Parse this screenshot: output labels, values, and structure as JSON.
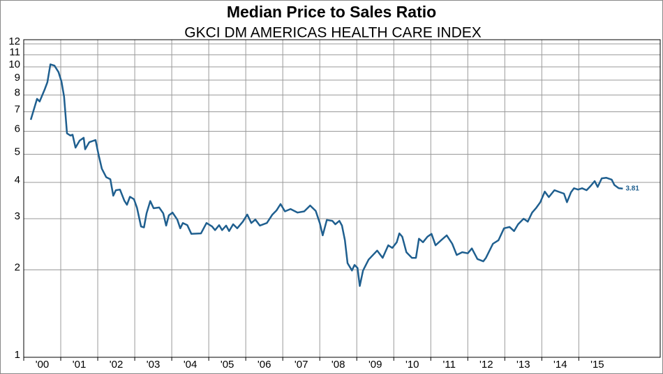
{
  "chart_data": {
    "type": "line",
    "title": "Median Price to Sales Ratio",
    "subtitle": "GKCI DM AMERICAS HEALTH CARE INDEX",
    "log_scale": true,
    "grid": true,
    "color": "#1f5f8f",
    "x": [
      2000.19,
      2000.36,
      2000.43,
      2000.57,
      2000.64,
      2000.72,
      2000.83,
      2000.94,
      2001.02,
      2001.09,
      2001.17,
      2001.26,
      2001.32,
      2001.4,
      2001.51,
      2001.62,
      2001.66,
      2001.77,
      2001.94,
      2002.02,
      2002.11,
      2002.23,
      2002.34,
      2002.42,
      2002.49,
      2002.6,
      2002.72,
      2002.79,
      2002.87,
      2002.98,
      2003.06,
      2003.17,
      2003.25,
      2003.32,
      2003.42,
      2003.51,
      2003.66,
      2003.77,
      2003.85,
      2003.92,
      2004.02,
      2004.15,
      2004.23,
      2004.3,
      2004.42,
      2004.53,
      2004.79,
      2004.94,
      2005.09,
      2005.17,
      2005.28,
      2005.36,
      2005.47,
      2005.55,
      2005.66,
      2005.77,
      2005.92,
      2006.04,
      2006.15,
      2006.26,
      2006.38,
      2006.57,
      2006.72,
      2006.83,
      2006.94,
      2007.06,
      2007.21,
      2007.4,
      2007.58,
      2007.74,
      2007.89,
      2008.0,
      2008.08,
      2008.19,
      2008.34,
      2008.42,
      2008.53,
      2008.6,
      2008.68,
      2008.75,
      2008.87,
      2008.94,
      2009.02,
      2009.08,
      2009.17,
      2009.32,
      2009.55,
      2009.7,
      2009.85,
      2009.96,
      2010.08,
      2010.15,
      2010.23,
      2010.34,
      2010.49,
      2010.6,
      2010.68,
      2010.79,
      2010.91,
      2011.02,
      2011.13,
      2011.28,
      2011.43,
      2011.58,
      2011.7,
      2011.85,
      2012.0,
      2012.11,
      2012.26,
      2012.42,
      2012.49,
      2012.68,
      2012.83,
      2012.98,
      2013.13,
      2013.25,
      2013.36,
      2013.51,
      2013.62,
      2013.74,
      2013.85,
      2013.96,
      2014.08,
      2014.19,
      2014.34,
      2014.49,
      2014.6,
      2014.68,
      2014.79,
      2014.87,
      2014.98,
      2015.09,
      2015.21,
      2015.32,
      2015.43,
      2015.51,
      2015.62,
      2015.74,
      2015.89,
      2015.96,
      2016.08,
      2016.19
    ],
    "values": [
      6.57,
      7.76,
      7.6,
      8.38,
      8.85,
      10.2,
      10.1,
      9.6,
      8.9,
      7.9,
      5.9,
      5.8,
      5.84,
      5.27,
      5.57,
      5.7,
      5.2,
      5.5,
      5.6,
      5.0,
      4.46,
      4.17,
      4.1,
      3.6,
      3.76,
      3.78,
      3.46,
      3.35,
      3.57,
      3.5,
      3.27,
      2.82,
      2.8,
      3.13,
      3.45,
      3.26,
      3.28,
      3.13,
      2.84,
      3.08,
      3.15,
      2.98,
      2.78,
      2.9,
      2.85,
      2.66,
      2.67,
      2.9,
      2.82,
      2.74,
      2.85,
      2.74,
      2.84,
      2.72,
      2.87,
      2.78,
      2.93,
      3.1,
      2.9,
      2.98,
      2.84,
      2.9,
      3.1,
      3.2,
      3.37,
      3.18,
      3.24,
      3.15,
      3.18,
      3.33,
      3.19,
      2.9,
      2.63,
      2.97,
      2.95,
      2.87,
      2.95,
      2.84,
      2.53,
      2.11,
      1.99,
      2.08,
      2.03,
      1.76,
      1.99,
      2.17,
      2.33,
      2.2,
      2.43,
      2.38,
      2.49,
      2.67,
      2.6,
      2.3,
      2.2,
      2.2,
      2.56,
      2.49,
      2.6,
      2.66,
      2.43,
      2.53,
      2.63,
      2.46,
      2.25,
      2.3,
      2.28,
      2.37,
      2.18,
      2.14,
      2.2,
      2.46,
      2.53,
      2.78,
      2.81,
      2.72,
      2.87,
      3.0,
      2.93,
      3.15,
      3.27,
      3.42,
      3.72,
      3.56,
      3.76,
      3.7,
      3.66,
      3.42,
      3.7,
      3.82,
      3.78,
      3.82,
      3.76,
      3.89,
      4.04,
      3.86,
      4.13,
      4.15,
      4.09,
      3.92,
      3.82,
      3.81
    ],
    "value_labels": [
      null,
      null,
      null,
      null,
      null,
      null,
      null,
      null,
      null,
      null,
      null,
      null,
      null,
      null,
      null,
      null,
      null,
      null,
      null,
      null,
      null,
      null,
      null,
      null,
      null,
      null,
      null,
      null,
      null,
      null,
      null,
      null,
      null,
      null,
      null,
      null,
      null,
      null,
      null,
      null,
      null,
      null,
      null,
      null,
      null,
      null,
      null,
      null,
      null,
      null,
      null,
      null,
      null,
      null,
      null,
      null,
      null,
      null,
      null,
      null,
      null,
      null,
      null,
      null,
      null,
      null,
      null,
      null,
      null,
      null,
      null,
      null,
      null,
      null,
      null,
      null,
      null,
      null,
      null,
      null,
      null,
      null,
      null,
      null,
      null,
      null,
      null,
      null,
      null,
      null,
      null,
      null,
      null,
      null,
      null,
      null,
      null,
      null,
      null,
      null,
      null,
      null,
      null,
      null,
      null,
      null,
      null,
      null,
      null,
      null,
      null,
      null,
      null,
      null,
      null,
      null,
      null,
      null,
      null,
      null,
      null,
      null,
      null,
      null,
      null,
      null,
      null,
      null,
      null,
      null,
      null,
      null,
      null,
      null,
      null,
      null,
      null,
      null,
      null,
      null,
      null,
      "3.81"
    ],
    "xlim": [
      2000,
      2017.2
    ],
    "ylim": [
      1,
      12.4
    ],
    "xticks": [
      {
        "value": 2000,
        "label": "'00"
      },
      {
        "value": 2001,
        "label": "'01"
      },
      {
        "value": 2002,
        "label": "'02"
      },
      {
        "value": 2003,
        "label": "'03"
      },
      {
        "value": 2004,
        "label": "'04"
      },
      {
        "value": 2005,
        "label": "'05"
      },
      {
        "value": 2006,
        "label": "'06"
      },
      {
        "value": 2007,
        "label": "'07"
      },
      {
        "value": 2008,
        "label": "'08"
      },
      {
        "value": 2009,
        "label": "'09"
      },
      {
        "value": 2010,
        "label": "'10"
      },
      {
        "value": 2011,
        "label": "'11"
      },
      {
        "value": 2012,
        "label": "'12"
      },
      {
        "value": 2013,
        "label": "'13"
      },
      {
        "value": 2014,
        "label": "'14"
      },
      {
        "value": 2015,
        "label": "'15"
      }
    ],
    "yticks": [
      1,
      2,
      3,
      4,
      5,
      6,
      7,
      8,
      9,
      10,
      11,
      12
    ]
  }
}
